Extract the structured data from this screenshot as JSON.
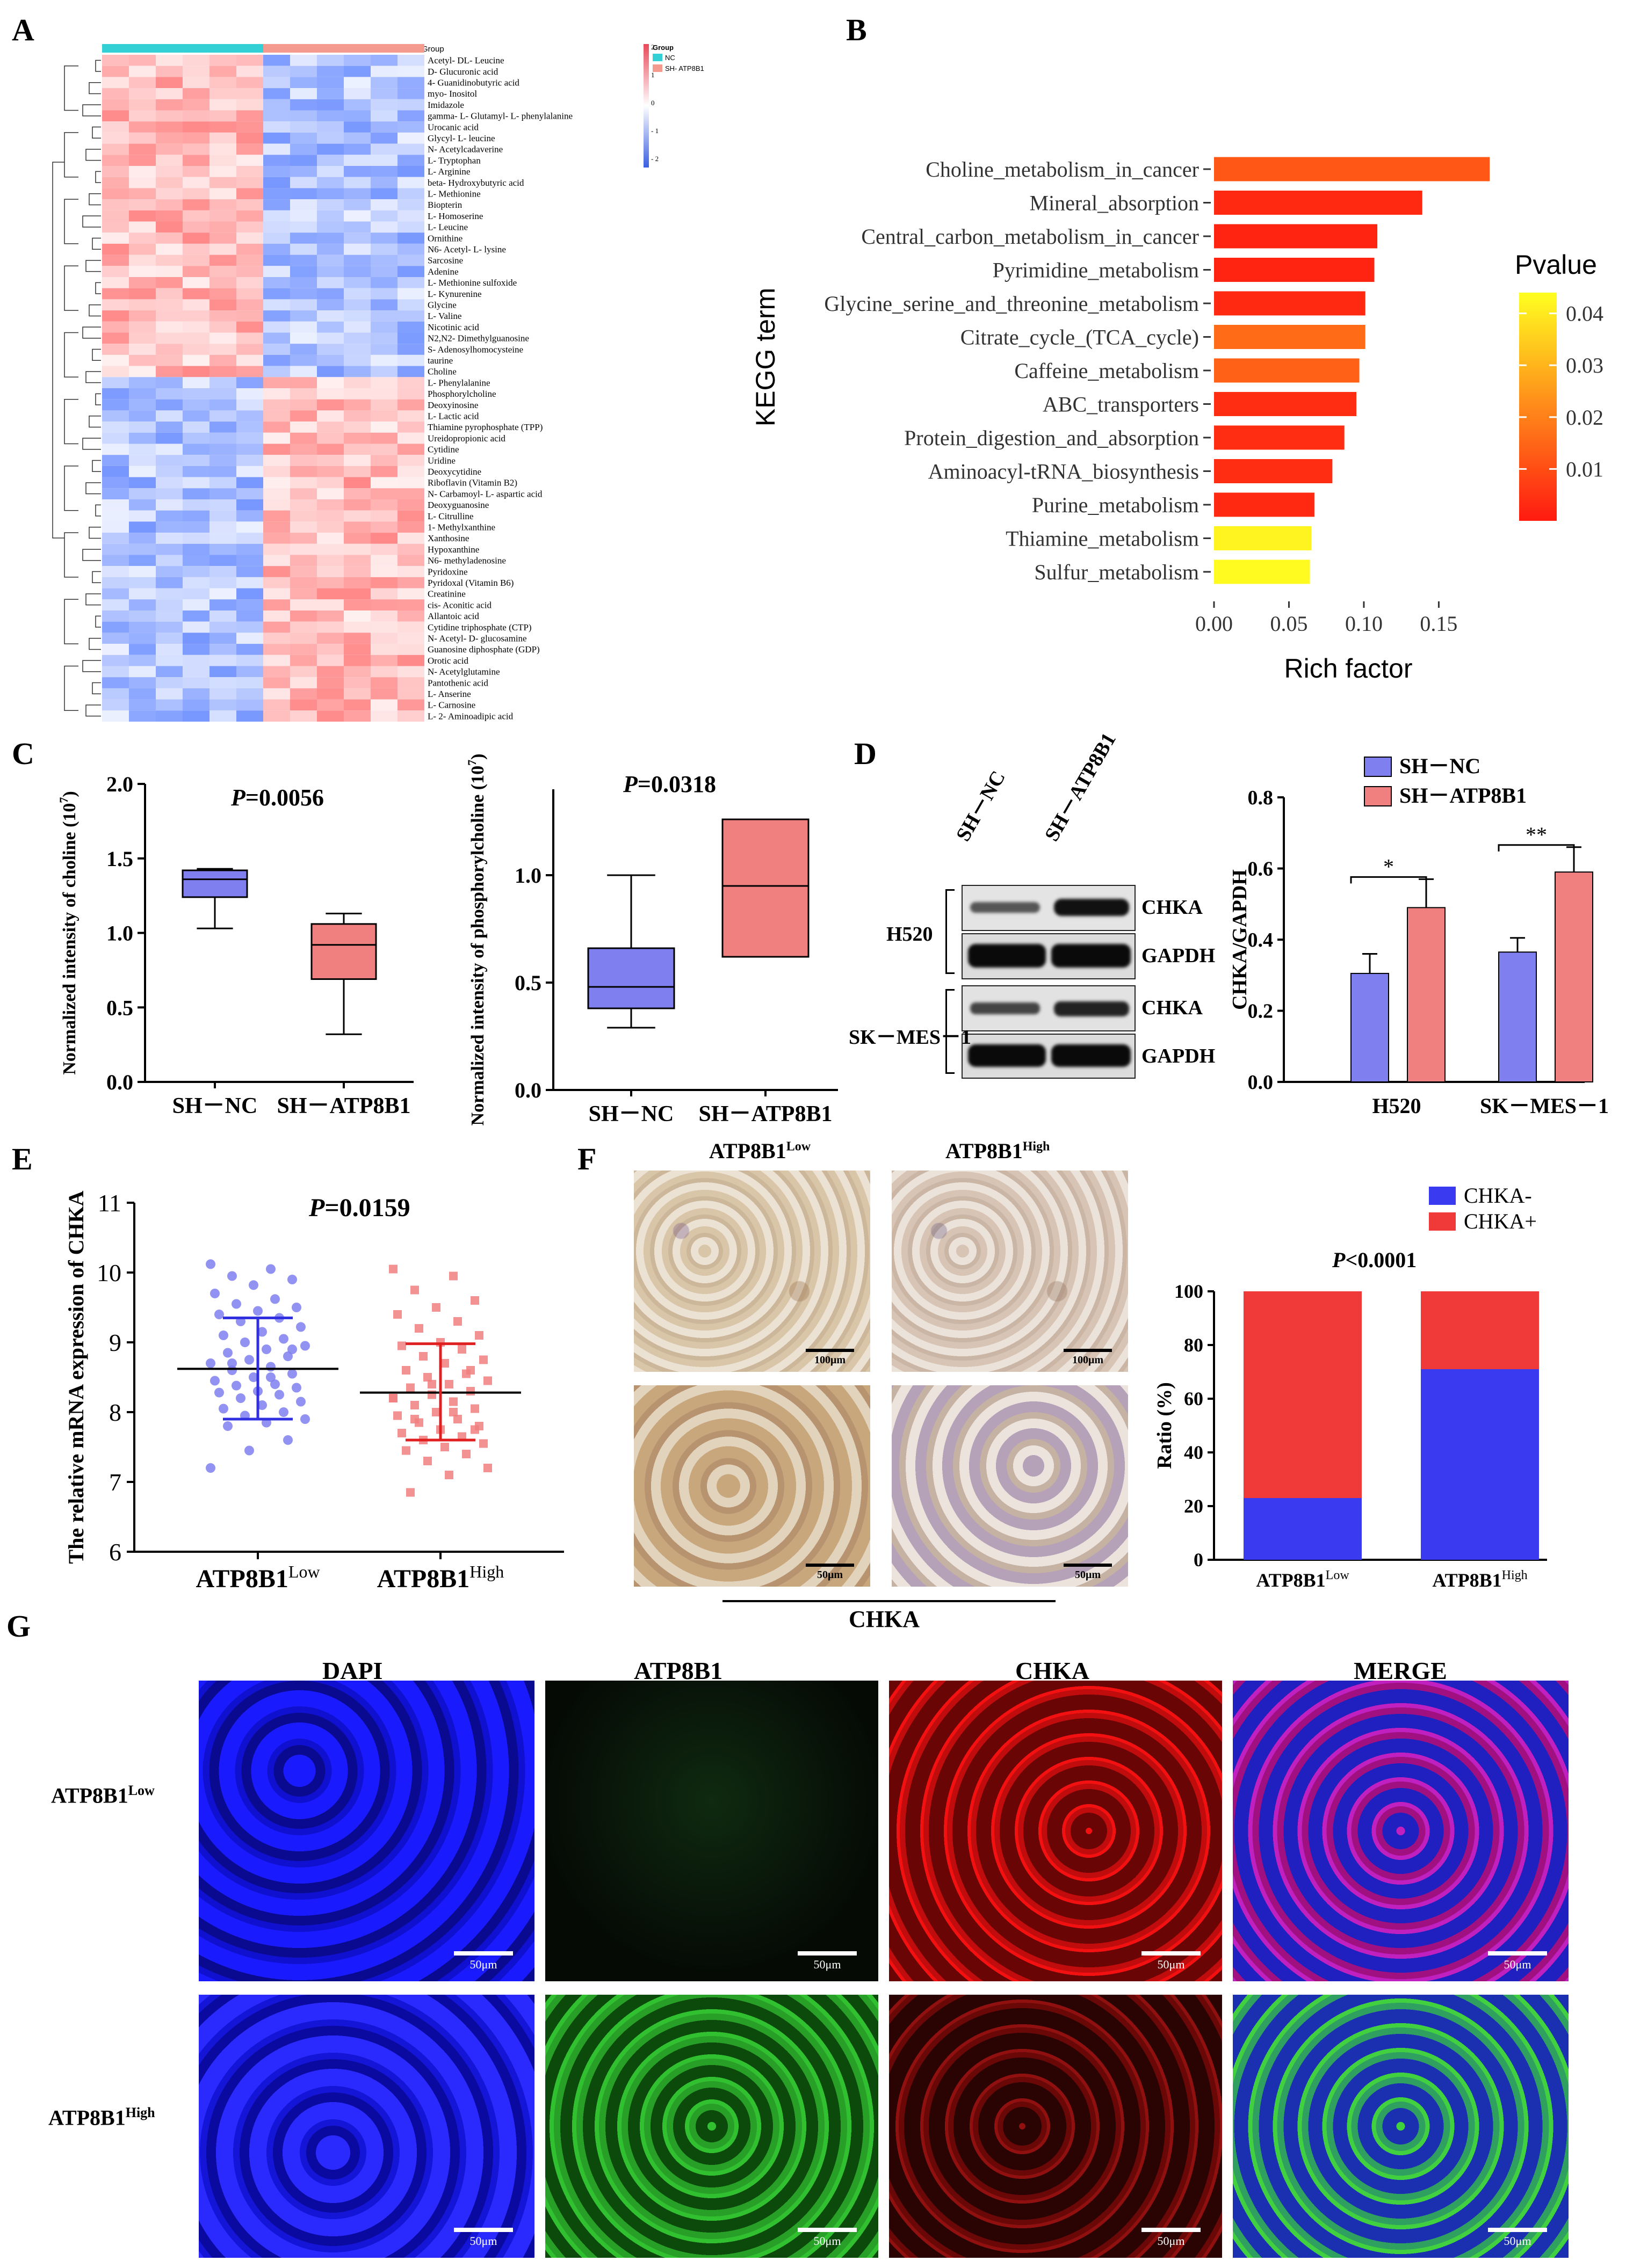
{
  "panel_labels": [
    "A",
    "B",
    "C",
    "D",
    "E",
    "F",
    "G"
  ],
  "colors": {
    "nc": "#7f7ff0",
    "atp": "#f07f7f",
    "blue_bar": "#3a3af0",
    "red_bar": "#f03a3a",
    "teal": "#33d1d6",
    "salmon": "#f59a8f",
    "heat_red": "#e8495a",
    "heat_blue": "#3a5fe0"
  },
  "heatmap": {
    "group_header": "Group",
    "legend_title": "Group",
    "legend_items": [
      "NC",
      "SH- ATP8B1"
    ],
    "scale_ticks": [
      "2",
      "1",
      "0",
      "- 1",
      "- 2"
    ],
    "rows": [
      "Acetyl- DL- Leucine",
      "D- Glucuronic acid",
      "4- Guanidinobutyric acid",
      "myo- Inositol",
      "Imidazole",
      "gamma- L- Glutamyl- L- phenylalanine",
      "Urocanic acid",
      "Glycyl- L- leucine",
      "N- Acetylcadaverine",
      "L- Tryptophan",
      "L- Arginine",
      "beta- Hydroxybutyric acid",
      "L- Methionine",
      "Biopterin",
      "L- Homoserine",
      "L- Leucine",
      "Ornithine",
      "N6- Acetyl- L- lysine",
      "Sarcosine",
      "Adenine",
      "L- Methionine sulfoxide",
      "L- Kynurenine",
      "Glycine",
      "L- Valine",
      "Nicotinic acid",
      "N2,N2- Dimethylguanosine",
      "S- Adenosylhomocysteine",
      "taurine",
      "Choline",
      "L- Phenylalanine",
      "Phosphorylcholine",
      "Deoxyinosine",
      "L- Lactic acid",
      "Thiamine pyrophosphate (TPP)",
      "Ureidopropionic acid",
      "Cytidine",
      "Uridine",
      "Deoxycytidine",
      "Riboflavin (Vitamin B2)",
      "N- Carbamoyl- L- aspartic acid",
      "Deoxyguanosine",
      "L- Citrulline",
      "1- Methylxanthine",
      "Xanthosine",
      "Hypoxanthine",
      "N6- methyladenosine",
      "Pyridoxine",
      "Pyridoxal (Vitamin B6)",
      "Creatinine",
      "cis- Aconitic acid",
      "Allantoic acid",
      "Cytidine triphosphate (CTP)",
      "N- Acetyl- D- glucosamine",
      "Guanosine diphosphate (GDP)",
      "Orotic acid",
      "N- Acetylglutamine",
      "Pantothenic acid",
      "L- Anserine",
      "L- Carnosine",
      "L- 2- Aminoadipic acid"
    ],
    "n_columns": 12,
    "n_rows_up_in_nc": 29
  },
  "chart_data": [
    {
      "id": "B",
      "type": "bar",
      "orientation": "horizontal",
      "xlabel": "Rich factor",
      "ylabel": "KEGG term",
      "xlim": [
        0,
        0.19
      ],
      "xticks": [
        "0.00",
        "0.05",
        "0.10",
        "0.15"
      ],
      "categories": [
        "Choline_metabolism_in_cancer",
        "Mineral_absorption",
        "Central_carbon_metabolism_in_cancer",
        "Pyrimidine_metabolism",
        "Glycine_serine_and_threonine_metabolism",
        "Citrate_cycle_(TCA_cycle)",
        "Caffeine_metabolism",
        "ABC_transporters",
        "Protein_digestion_and_absorption",
        "Aminoacyl-tRNA_biosynthesis",
        "Purine_metabolism",
        "Thiamine_metabolism",
        "Sulfur_metabolism"
      ],
      "values": [
        0.184,
        0.139,
        0.109,
        0.107,
        0.101,
        0.101,
        0.097,
        0.095,
        0.087,
        0.079,
        0.067,
        0.065,
        0.064
      ],
      "pvalues": [
        0.012,
        0.003,
        0.002,
        0.002,
        0.003,
        0.016,
        0.014,
        0.004,
        0.004,
        0.004,
        0.003,
        0.042,
        0.043
      ],
      "legend_title": "Pvalue",
      "legend_ticks": [
        "0.04",
        "0.03",
        "0.02",
        "0.01"
      ],
      "legend_range": [
        0.0,
        0.044
      ]
    },
    {
      "id": "C1",
      "type": "box",
      "title": "P=0.0056",
      "p_label": "P",
      "p_value": "=0.0056",
      "ylabel": "Normalized intensity of choline (10",
      "ylabel_exp": "7",
      "ylim": [
        0,
        2.0
      ],
      "yticks": [
        "0.0",
        "0.5",
        "1.0",
        "1.5",
        "2.0"
      ],
      "categories": [
        "SH－NC",
        "SH－ATP8B1"
      ],
      "boxes": [
        {
          "min": 1.03,
          "q1": 1.24,
          "median": 1.36,
          "q3": 1.42,
          "max": 1.43
        },
        {
          "min": 0.32,
          "q1": 0.69,
          "median": 0.92,
          "q3": 1.06,
          "max": 1.13
        }
      ]
    },
    {
      "id": "C2",
      "type": "box",
      "title": "P=0.0318",
      "p_label": "P",
      "p_value": "=0.0318",
      "ylabel": "Normalized intensity of phosphorylcholine (10",
      "ylabel_exp": "7",
      "ylim": [
        0,
        1.4
      ],
      "yticks": [
        "0.0",
        "0.5",
        "1.0"
      ],
      "categories": [
        "SH－NC",
        "SH－ATP8B1"
      ],
      "boxes": [
        {
          "min": 0.29,
          "q1": 0.38,
          "median": 0.48,
          "q3": 0.66,
          "max": 1.0
        },
        {
          "min": 0.62,
          "q1": 0.62,
          "median": 0.95,
          "q3": 1.26,
          "max": 1.26
        }
      ]
    },
    {
      "id": "D",
      "type": "bar",
      "ylabel": "CHKA/GAPDH",
      "ylim": [
        0,
        0.8
      ],
      "yticks": [
        "0.0",
        "0.2",
        "0.4",
        "0.6",
        "0.8"
      ],
      "categories": [
        "H520",
        "SK－MES－1"
      ],
      "series": [
        {
          "name": "SH－NC",
          "values": [
            0.305,
            0.365
          ],
          "errors": [
            0.055,
            0.04
          ]
        },
        {
          "name": "SH－ATP8B1",
          "values": [
            0.49,
            0.59
          ],
          "errors": [
            0.08,
            0.07
          ]
        }
      ],
      "significance": [
        "*",
        "**"
      ]
    },
    {
      "id": "E",
      "type": "scatter",
      "title_p": "P",
      "title_rest": "=0.0159",
      "ylabel": "The relative mRNA expression of CHKA",
      "ylim": [
        6,
        11
      ],
      "yticks": [
        "6",
        "7",
        "8",
        "9",
        "10",
        "11"
      ],
      "categories": [
        "ATP8B1",
        "ATP8B1"
      ],
      "category_sups": [
        "Low",
        "High"
      ],
      "groups": [
        {
          "name": "ATP8B1 Low",
          "mean": 8.62,
          "sd_low": 7.9,
          "sd_high": 9.35,
          "points": [
            10.12,
            10.05,
            9.95,
            9.9,
            9.82,
            9.7,
            9.62,
            9.55,
            9.5,
            9.45,
            9.4,
            9.35,
            9.3,
            9.22,
            9.15,
            9.1,
            9.05,
            9.0,
            8.95,
            8.9,
            8.85,
            8.8,
            8.75,
            8.7,
            8.65,
            8.6,
            8.55,
            8.5,
            8.45,
            8.4,
            8.38,
            8.35,
            8.3,
            8.28,
            8.25,
            8.2,
            8.15,
            8.1,
            8.05,
            8.0,
            7.95,
            7.9,
            7.85,
            7.8,
            7.6,
            7.45,
            7.2,
            8.5,
            8.7,
            8.9
          ]
        },
        {
          "name": "ATP8B1 High",
          "mean": 8.28,
          "sd_low": 7.6,
          "sd_high": 8.98,
          "points": [
            10.05,
            9.95,
            9.75,
            9.6,
            9.5,
            9.4,
            9.3,
            9.2,
            9.1,
            9.0,
            8.95,
            8.9,
            8.8,
            8.75,
            8.7,
            8.6,
            8.55,
            8.5,
            8.45,
            8.4,
            8.35,
            8.3,
            8.25,
            8.2,
            8.15,
            8.1,
            8.05,
            8.0,
            7.95,
            7.9,
            7.85,
            7.8,
            7.75,
            7.7,
            7.65,
            7.6,
            7.55,
            7.5,
            7.45,
            7.4,
            7.3,
            7.2,
            7.1,
            6.85,
            8.6,
            8.4,
            8.2,
            8.0,
            7.9,
            7.75
          ]
        }
      ]
    },
    {
      "id": "F",
      "type": "bar",
      "stacked": true,
      "title_p": "P",
      "title_rest": "<0.0001",
      "ylabel": "Ratio (%)",
      "ylim": [
        0,
        100
      ],
      "yticks": [
        "0",
        "20",
        "40",
        "60",
        "80",
        "100"
      ],
      "categories": [
        "ATP8B1",
        "ATP8B1"
      ],
      "category_sups": [
        "Low",
        "High"
      ],
      "series": [
        {
          "name": "CHKA-",
          "values": [
            23,
            71
          ]
        },
        {
          "name": "CHKA+",
          "values": [
            77,
            29
          ]
        }
      ]
    }
  ],
  "western": {
    "lanes": [
      "SH－NC",
      "SH－ATP8B1"
    ],
    "cell_lines": [
      "H520",
      "SK－MES－1"
    ],
    "proteins": [
      "CHKA",
      "GAPDH",
      "CHKA",
      "GAPDH"
    ]
  },
  "ihc": {
    "headers": [
      "ATP8B1",
      "ATP8B1"
    ],
    "header_sups": [
      "Low",
      "High"
    ],
    "scalebars": [
      "100μm",
      "100μm",
      "50μm",
      "50μm"
    ],
    "caption": "CHKA"
  },
  "immuno": {
    "headers": [
      "DAPI",
      "ATP8B1",
      "CHKA",
      "MERGE"
    ],
    "row_labels": [
      "ATP8B1",
      "ATP8B1"
    ],
    "row_sups": [
      "Low",
      "High"
    ],
    "scalebar": "50μm"
  }
}
